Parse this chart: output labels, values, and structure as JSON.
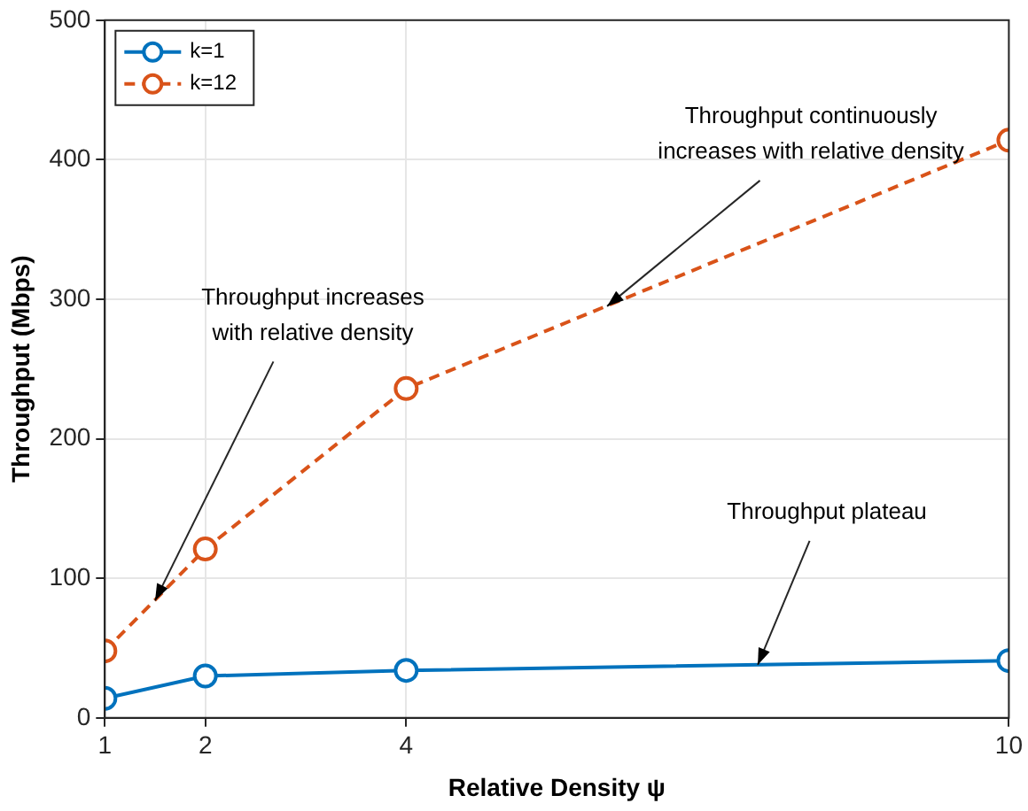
{
  "chart_data": {
    "type": "line",
    "xlabel": "Relative Density ψ",
    "ylabel": "Throughput (Mbps)",
    "x": [
      1,
      2,
      4,
      10
    ],
    "series": [
      {
        "name": "k=1",
        "color": "#0072bd",
        "values": [
          14,
          30,
          34,
          41
        ],
        "line_style": "solid"
      },
      {
        "name": "k=12",
        "color": "#d95319",
        "values": [
          48,
          121,
          236,
          414
        ],
        "line_style": "dashed"
      }
    ],
    "xlim": [
      1,
      10
    ],
    "xticks": [
      1,
      2,
      4,
      10
    ],
    "ylim": [
      0,
      500
    ],
    "yticks": [
      0,
      100,
      200,
      300,
      400,
      500
    ],
    "grid": true,
    "legend": "top left",
    "marker": "circle",
    "annotations": [
      {
        "text": "Throughput increases\nwith relative density",
        "x": 1.5,
        "y": 84
      },
      {
        "text": "Throughput continuously\nincreases with relative density",
        "x": 6,
        "y": 295
      },
      {
        "text": "Throughput plateau",
        "x": 7.5,
        "y": 38
      }
    ]
  }
}
